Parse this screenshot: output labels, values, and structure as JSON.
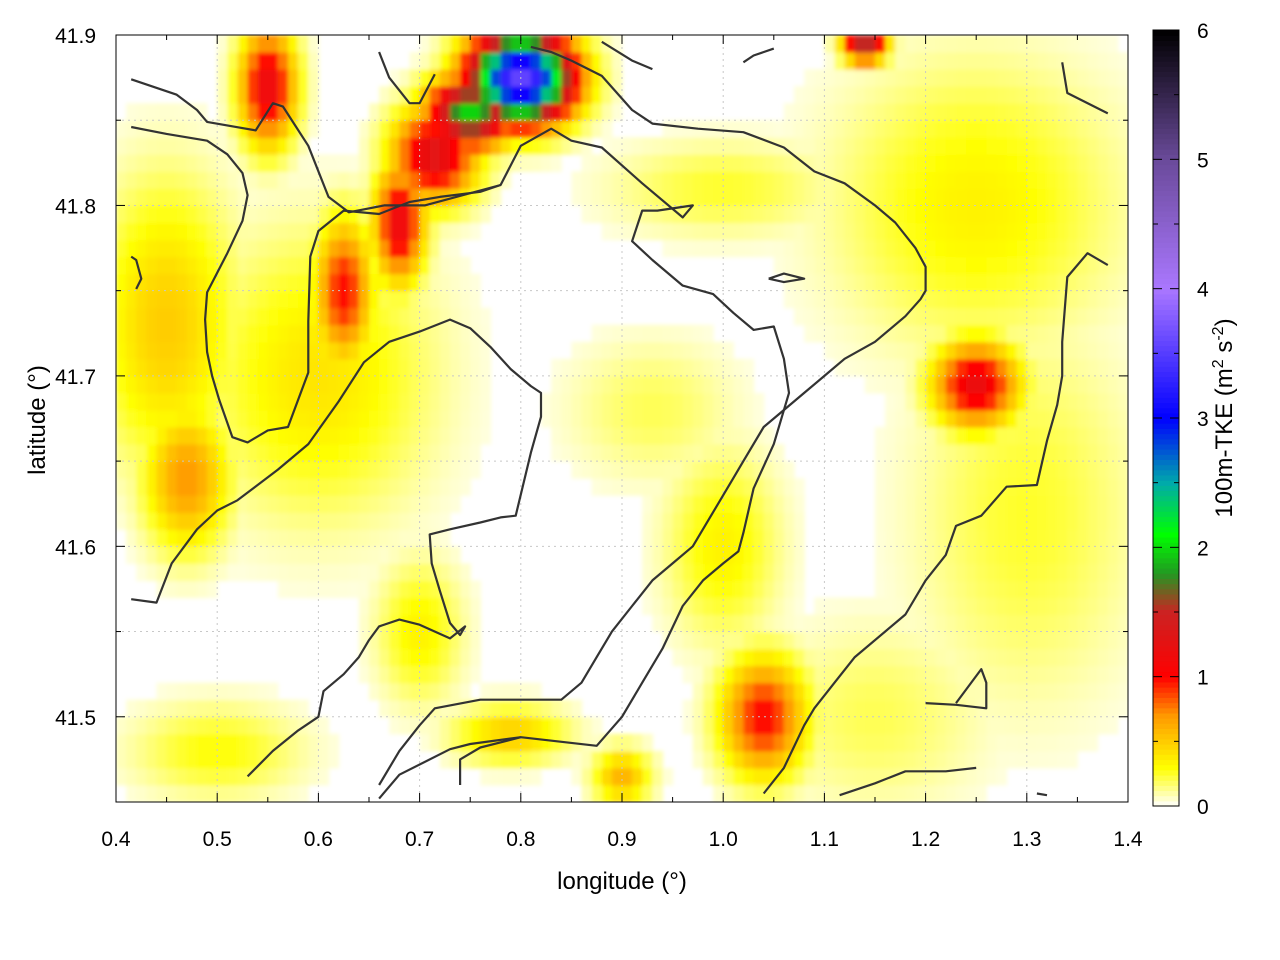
{
  "chart_data": {
    "type": "heatmap",
    "xlabel": "longitude (°)",
    "ylabel": "latitude (°)",
    "colorbar_label_main": "100m-TKE (m",
    "colorbar_label_sup1": "2",
    "colorbar_label_mid": " s",
    "colorbar_label_sup2": "-2",
    "colorbar_label_end": ")",
    "xlim": [
      0.4,
      1.4
    ],
    "ylim": [
      41.45,
      41.9
    ],
    "x_ticks": [
      "0.4",
      "0.5",
      "0.6",
      "0.7",
      "0.8",
      "0.9",
      "1.0",
      "1.1",
      "1.2",
      "1.3",
      "1.4"
    ],
    "y_ticks": [
      "41.5",
      "41.6",
      "41.7",
      "41.8",
      "41.9"
    ],
    "colorbar_range": [
      0,
      6
    ],
    "colorbar_ticks": [
      "0",
      "1",
      "2",
      "3",
      "4",
      "5",
      "6"
    ],
    "grid": true,
    "colormap": [
      {
        "v": 0.0,
        "color": "#ffffff"
      },
      {
        "v": 0.3,
        "color": "#ffff00"
      },
      {
        "v": 0.7,
        "color": "#ff9900"
      },
      {
        "v": 1.0,
        "color": "#ff0000"
      },
      {
        "v": 1.5,
        "color": "#cc2222"
      },
      {
        "v": 1.8,
        "color": "#229922"
      },
      {
        "v": 2.1,
        "color": "#00ff00"
      },
      {
        "v": 2.5,
        "color": "#00aaaa"
      },
      {
        "v": 3.0,
        "color": "#0000ff"
      },
      {
        "v": 4.0,
        "color": "#aa77ff"
      },
      {
        "v": 5.0,
        "color": "#6a4a9a"
      },
      {
        "v": 6.0,
        "color": "#000000"
      }
    ],
    "hotspots": [
      {
        "lon": 0.8,
        "lat": 41.875,
        "value": 3.6,
        "sx": 0.035,
        "sy": 0.018
      },
      {
        "lon": 0.75,
        "lat": 41.855,
        "value": 2.0,
        "sx": 0.03,
        "sy": 0.015
      },
      {
        "lon": 0.715,
        "lat": 41.83,
        "value": 1.3,
        "sx": 0.03,
        "sy": 0.02
      },
      {
        "lon": 0.68,
        "lat": 41.79,
        "value": 1.2,
        "sx": 0.018,
        "sy": 0.025
      },
      {
        "lon": 0.55,
        "lat": 41.87,
        "value": 1.2,
        "sx": 0.02,
        "sy": 0.025
      },
      {
        "lon": 0.625,
        "lat": 41.75,
        "value": 1.0,
        "sx": 0.02,
        "sy": 0.03
      },
      {
        "lon": 1.14,
        "lat": 41.895,
        "value": 1.6,
        "sx": 0.015,
        "sy": 0.008
      },
      {
        "lon": 1.25,
        "lat": 41.695,
        "value": 1.2,
        "sx": 0.03,
        "sy": 0.018
      },
      {
        "lon": 1.04,
        "lat": 41.5,
        "value": 1.0,
        "sx": 0.03,
        "sy": 0.025
      },
      {
        "lon": 0.9,
        "lat": 41.465,
        "value": 0.6,
        "sx": 0.02,
        "sy": 0.012
      },
      {
        "lon": 0.47,
        "lat": 41.64,
        "value": 0.7,
        "sx": 0.03,
        "sy": 0.03
      },
      {
        "lon": 0.45,
        "lat": 41.73,
        "value": 0.5,
        "sx": 0.05,
        "sy": 0.06
      },
      {
        "lon": 0.6,
        "lat": 41.7,
        "value": 0.4,
        "sx": 0.08,
        "sy": 0.06
      },
      {
        "lon": 0.79,
        "lat": 41.49,
        "value": 0.5,
        "sx": 0.04,
        "sy": 0.012
      },
      {
        "lon": 0.7,
        "lat": 41.55,
        "value": 0.35,
        "sx": 0.03,
        "sy": 0.03
      },
      {
        "lon": 1.0,
        "lat": 41.6,
        "value": 0.35,
        "sx": 0.04,
        "sy": 0.04
      },
      {
        "lon": 1.25,
        "lat": 41.8,
        "value": 0.35,
        "sx": 0.1,
        "sy": 0.06
      },
      {
        "lon": 1.3,
        "lat": 41.62,
        "value": 0.25,
        "sx": 0.08,
        "sy": 0.08
      },
      {
        "lon": 1.15,
        "lat": 41.5,
        "value": 0.2,
        "sx": 0.08,
        "sy": 0.04
      },
      {
        "lon": 0.5,
        "lat": 41.48,
        "value": 0.3,
        "sx": 0.06,
        "sy": 0.02
      },
      {
        "lon": 0.93,
        "lat": 41.68,
        "value": 0.2,
        "sx": 0.06,
        "sy": 0.03
      },
      {
        "lon": 1.0,
        "lat": 41.81,
        "value": 0.25,
        "sx": 0.08,
        "sy": 0.02
      }
    ],
    "contours": [
      [
        [
          0.415,
          41.874
        ],
        [
          0.46,
          41.865
        ],
        [
          0.48,
          41.856
        ],
        [
          0.49,
          41.849
        ],
        [
          0.538,
          41.844
        ],
        [
          0.555,
          41.86
        ],
        [
          0.565,
          41.858
        ],
        [
          0.59,
          41.835
        ],
        [
          0.61,
          41.805
        ],
        [
          0.63,
          41.796
        ],
        [
          0.665,
          41.8
        ],
        [
          0.705,
          41.8
        ],
        [
          0.78,
          41.812
        ],
        [
          0.8,
          41.835
        ],
        [
          0.83,
          41.845
        ],
        [
          0.85,
          41.838
        ],
        [
          0.88,
          41.834
        ],
        [
          0.92,
          41.813
        ],
        [
          0.96,
          41.793
        ],
        [
          0.97,
          41.8
        ],
        [
          0.935,
          41.797
        ],
        [
          0.92,
          41.797
        ],
        [
          0.91,
          41.779
        ],
        [
          0.93,
          41.768
        ],
        [
          0.96,
          41.753
        ],
        [
          0.99,
          41.748
        ],
        [
          1.01,
          41.737
        ],
        [
          1.03,
          41.727
        ],
        [
          1.05,
          41.729
        ],
        [
          1.06,
          41.71
        ],
        [
          1.065,
          41.69
        ],
        [
          1.05,
          41.66
        ],
        [
          1.03,
          41.634
        ],
        [
          1.02,
          41.608
        ],
        [
          1.015,
          41.597
        ],
        [
          1.0,
          41.59
        ],
        [
          0.98,
          41.58
        ],
        [
          0.96,
          41.565
        ],
        [
          0.94,
          41.54
        ],
        [
          0.92,
          41.52
        ],
        [
          0.9,
          41.5
        ],
        [
          0.875,
          41.483
        ],
        [
          0.8,
          41.488
        ],
        [
          0.75,
          41.484
        ],
        [
          0.73,
          41.481
        ],
        [
          0.68,
          41.466
        ],
        [
          0.66,
          41.452
        ]
      ],
      [
        [
          0.415,
          41.846
        ],
        [
          0.45,
          41.842
        ],
        [
          0.49,
          41.838
        ],
        [
          0.51,
          41.83
        ],
        [
          0.525,
          41.819
        ],
        [
          0.53,
          41.806
        ],
        [
          0.525,
          41.791
        ],
        [
          0.51,
          41.772
        ],
        [
          0.49,
          41.749
        ],
        [
          0.488,
          41.733
        ],
        [
          0.49,
          41.714
        ],
        [
          0.495,
          41.7
        ],
        [
          0.502,
          41.686
        ],
        [
          0.515,
          41.664
        ],
        [
          0.53,
          41.661
        ],
        [
          0.55,
          41.668
        ],
        [
          0.57,
          41.67
        ],
        [
          0.59,
          41.702
        ],
        [
          0.59,
          41.732
        ],
        [
          0.592,
          41.77
        ],
        [
          0.6,
          41.785
        ],
        [
          0.625,
          41.797
        ],
        [
          0.66,
          41.795
        ],
        [
          0.69,
          41.802
        ],
        [
          0.72,
          41.805
        ],
        [
          0.76,
          41.808
        ],
        [
          0.78,
          41.812
        ]
      ],
      [
        [
          0.415,
          41.77
        ],
        [
          0.42,
          41.768
        ],
        [
          0.425,
          41.757
        ],
        [
          0.42,
          41.751
        ]
      ],
      [
        [
          0.415,
          41.569
        ],
        [
          0.44,
          41.567
        ],
        [
          0.455,
          41.59
        ],
        [
          0.48,
          41.61
        ],
        [
          0.5,
          41.621
        ],
        [
          0.52,
          41.627
        ],
        [
          0.56,
          41.645
        ],
        [
          0.59,
          41.66
        ],
        [
          0.62,
          41.685
        ],
        [
          0.645,
          41.708
        ],
        [
          0.67,
          41.72
        ],
        [
          0.7,
          41.726
        ],
        [
          0.73,
          41.733
        ],
        [
          0.75,
          41.728
        ],
        [
          0.77,
          41.717
        ],
        [
          0.79,
          41.704
        ],
        [
          0.81,
          41.694
        ],
        [
          0.82,
          41.69
        ],
        [
          0.82,
          41.676
        ],
        [
          0.81,
          41.655
        ],
        [
          0.795,
          41.618
        ],
        [
          0.78,
          41.617
        ],
        [
          0.76,
          41.614
        ],
        [
          0.73,
          41.61
        ],
        [
          0.71,
          41.607
        ],
        [
          0.712,
          41.59
        ],
        [
          0.72,
          41.574
        ],
        [
          0.73,
          41.555
        ],
        [
          0.74,
          41.548
        ],
        [
          0.745,
          41.553
        ],
        [
          0.73,
          41.546
        ],
        [
          0.7,
          41.554
        ],
        [
          0.68,
          41.557
        ],
        [
          0.66,
          41.553
        ],
        [
          0.65,
          41.545
        ],
        [
          0.64,
          41.535
        ],
        [
          0.625,
          41.525
        ],
        [
          0.605,
          41.515
        ],
        [
          0.6,
          41.5
        ],
        [
          0.58,
          41.492
        ],
        [
          0.555,
          41.48
        ],
        [
          0.53,
          41.465
        ]
      ],
      [
        [
          0.66,
          41.46
        ],
        [
          0.68,
          41.48
        ],
        [
          0.7,
          41.495
        ],
        [
          0.715,
          41.505
        ],
        [
          0.76,
          41.51
        ],
        [
          0.84,
          41.51
        ],
        [
          0.86,
          41.52
        ],
        [
          0.875,
          41.535
        ],
        [
          0.89,
          41.55
        ],
        [
          0.91,
          41.565
        ],
        [
          0.93,
          41.58
        ],
        [
          0.95,
          41.59
        ],
        [
          0.97,
          41.6
        ],
        [
          0.99,
          41.62
        ],
        [
          1.01,
          41.64
        ],
        [
          1.02,
          41.65
        ],
        [
          1.04,
          41.67
        ],
        [
          1.06,
          41.68
        ],
        [
          1.08,
          41.69
        ],
        [
          1.1,
          41.7
        ],
        [
          1.12,
          41.71
        ],
        [
          1.15,
          41.72
        ],
        [
          1.18,
          41.735
        ],
        [
          1.195,
          41.745
        ],
        [
          1.2,
          41.75
        ],
        [
          1.2,
          41.764
        ],
        [
          1.19,
          41.775
        ],
        [
          1.17,
          41.79
        ],
        [
          1.15,
          41.8
        ],
        [
          1.12,
          41.813
        ],
        [
          1.09,
          41.82
        ],
        [
          1.06,
          41.834
        ],
        [
          1.02,
          41.843
        ],
        [
          0.975,
          41.845
        ],
        [
          0.93,
          41.848
        ],
        [
          0.91,
          41.856
        ],
        [
          0.88,
          41.876
        ],
        [
          0.85,
          41.885
        ],
        [
          0.83,
          41.89
        ],
        [
          0.81,
          41.893
        ]
      ],
      [
        [
          1.045,
          41.757
        ],
        [
          1.06,
          41.76
        ],
        [
          1.08,
          41.757
        ],
        [
          1.06,
          41.755
        ],
        [
          1.045,
          41.757
        ]
      ],
      [
        [
          1.115,
          41.454
        ],
        [
          1.15,
          41.461
        ],
        [
          1.18,
          41.468
        ],
        [
          1.22,
          41.468
        ],
        [
          1.25,
          41.47
        ]
      ],
      [
        [
          1.2,
          41.508
        ],
        [
          1.23,
          41.507
        ],
        [
          1.26,
          41.505
        ],
        [
          1.26,
          41.52
        ],
        [
          1.255,
          41.528
        ],
        [
          1.23,
          41.508
        ]
      ],
      [
        [
          1.335,
          41.884
        ],
        [
          1.34,
          41.866
        ],
        [
          1.38,
          41.854
        ]
      ],
      [
        [
          1.38,
          41.765
        ],
        [
          1.36,
          41.772
        ],
        [
          1.34,
          41.758
        ],
        [
          1.335,
          41.72
        ],
        [
          1.335,
          41.7
        ],
        [
          1.33,
          41.683
        ],
        [
          1.32,
          41.662
        ],
        [
          1.31,
          41.636
        ],
        [
          1.28,
          41.635
        ],
        [
          1.255,
          41.618
        ],
        [
          1.23,
          41.612
        ],
        [
          1.22,
          41.595
        ],
        [
          1.2,
          41.58
        ],
        [
          1.18,
          41.56
        ],
        [
          1.16,
          41.55
        ],
        [
          1.13,
          41.535
        ],
        [
          1.11,
          41.52
        ],
        [
          1.09,
          41.505
        ],
        [
          1.08,
          41.495
        ],
        [
          1.06,
          41.47
        ],
        [
          1.04,
          41.455
        ]
      ],
      [
        [
          0.74,
          41.46
        ],
        [
          0.74,
          41.475
        ],
        [
          0.76,
          41.482
        ],
        [
          0.8,
          41.488
        ]
      ],
      [
        [
          0.66,
          41.89
        ],
        [
          0.67,
          41.875
        ],
        [
          0.69,
          41.86
        ],
        [
          0.7,
          41.86
        ],
        [
          0.715,
          41.877
        ]
      ],
      [
        [
          0.88,
          41.896
        ],
        [
          0.91,
          41.885
        ],
        [
          0.93,
          41.88
        ]
      ],
      [
        [
          1.02,
          41.884
        ],
        [
          1.03,
          41.888
        ],
        [
          1.05,
          41.892
        ]
      ],
      [
        [
          1.31,
          41.455
        ],
        [
          1.32,
          41.454
        ]
      ]
    ]
  }
}
